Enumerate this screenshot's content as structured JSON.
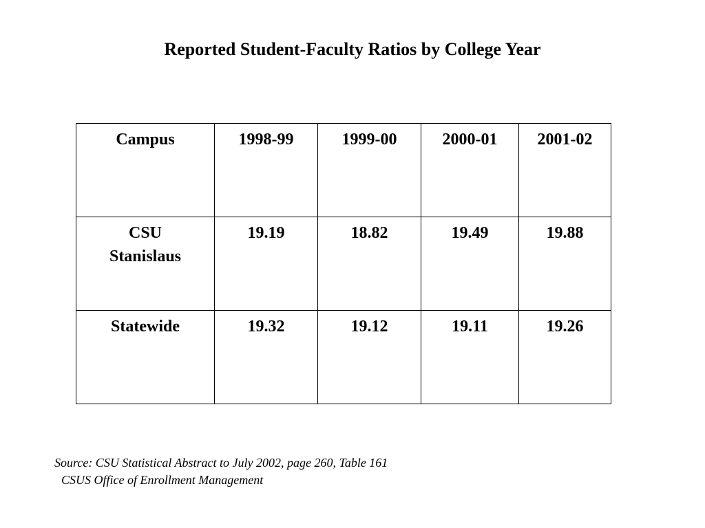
{
  "title": "Reported Student-Faculty Ratios by College Year",
  "table": {
    "headers": [
      "Campus",
      "1998-99",
      "1999-00",
      "2000-01",
      "2001-02"
    ],
    "rows": [
      {
        "campus": "CSU Stanislaus",
        "values": [
          "19.19",
          "18.82",
          "19.49",
          "19.88"
        ]
      },
      {
        "campus": "Statewide",
        "values": [
          "19.32",
          "19.12",
          "19.11",
          "19.26"
        ]
      }
    ]
  },
  "source": {
    "line1": "Source: CSU Statistical Abstract to July 2002, page 260, Table 161",
    "line2": "CSUS Office of Enrollment Management"
  }
}
